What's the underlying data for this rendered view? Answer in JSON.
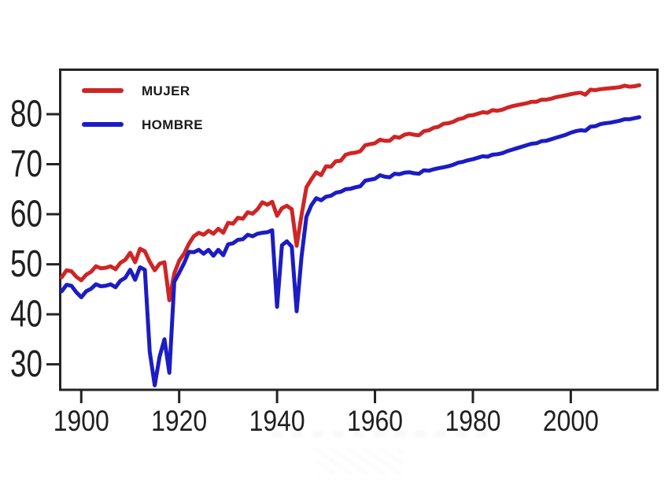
{
  "figure": {
    "background": "#ffffff",
    "axis_color": "#232323",
    "tick_label_color": "#1f1f1f"
  },
  "legend": {
    "items": [
      {
        "label": "MUJER",
        "color": "#cf2525"
      },
      {
        "label": "HOMBRE",
        "color": "#1c1cc4"
      }
    ]
  },
  "chart_data": {
    "type": "line",
    "title": "",
    "xlabel": "",
    "ylabel": "",
    "grid": false,
    "legend_position": "top-left",
    "x_range": [
      1895.7,
      2017.7
    ],
    "y_range": [
      24.9,
      88.9
    ],
    "x_ticks": [
      1900,
      1920,
      1940,
      1960,
      1980,
      2000
    ],
    "y_ticks": [
      30,
      40,
      50,
      60,
      70,
      80
    ],
    "x": [
      1896,
      1897,
      1898,
      1899,
      1900,
      1901,
      1902,
      1903,
      1904,
      1905,
      1906,
      1907,
      1908,
      1909,
      1910,
      1911,
      1912,
      1913,
      1914,
      1915,
      1916,
      1917,
      1918,
      1919,
      1920,
      1921,
      1922,
      1923,
      1924,
      1925,
      1926,
      1927,
      1928,
      1929,
      1930,
      1931,
      1932,
      1933,
      1934,
      1935,
      1936,
      1937,
      1938,
      1939,
      1940,
      1941,
      1942,
      1943,
      1944,
      1945,
      1946,
      1947,
      1948,
      1949,
      1950,
      1951,
      1952,
      1953,
      1954,
      1955,
      1956,
      1957,
      1958,
      1959,
      1960,
      1961,
      1962,
      1963,
      1964,
      1965,
      1966,
      1967,
      1968,
      1969,
      1970,
      1971,
      1972,
      1973,
      1974,
      1975,
      1976,
      1977,
      1978,
      1979,
      1980,
      1981,
      1982,
      1983,
      1984,
      1985,
      1986,
      1987,
      1988,
      1989,
      1990,
      1991,
      1992,
      1993,
      1994,
      1995,
      1996,
      1997,
      1998,
      1999,
      2000,
      2001,
      2002,
      2003,
      2004,
      2005,
      2006,
      2007,
      2008,
      2009,
      2010,
      2011,
      2012,
      2013,
      2014
    ],
    "series": [
      {
        "name": "MUJER",
        "color": "#cf2525",
        "values": [
          47.4,
          48.8,
          48.6,
          47.5,
          46.8,
          47.9,
          48.5,
          49.6,
          49.2,
          49.3,
          49.6,
          49.0,
          50.3,
          50.9,
          52.3,
          50.4,
          53.1,
          52.6,
          50.5,
          48.8,
          50.1,
          50.4,
          42.8,
          48.2,
          50.7,
          52.1,
          54.1,
          55.6,
          56.3,
          55.9,
          56.7,
          56.1,
          57.1,
          56.3,
          58.3,
          58.1,
          59.3,
          59.1,
          60.4,
          60.1,
          61.0,
          62.4,
          61.9,
          62.5,
          59.7,
          61.2,
          61.7,
          61.0,
          53.7,
          59.8,
          65.4,
          67.0,
          68.4,
          67.8,
          69.6,
          69.5,
          70.6,
          70.7,
          71.9,
          72.2,
          72.3,
          72.6,
          73.8,
          74.0,
          74.2,
          74.9,
          74.7,
          74.7,
          75.5,
          75.3,
          75.9,
          76.1,
          75.9,
          75.8,
          76.6,
          76.8,
          77.3,
          77.5,
          78.1,
          78.2,
          78.5,
          79.0,
          79.2,
          79.7,
          79.8,
          80.1,
          80.4,
          80.3,
          80.8,
          80.7,
          80.9,
          81.3,
          81.6,
          81.8,
          82.0,
          82.2,
          82.5,
          82.5,
          82.9,
          82.9,
          83.1,
          83.4,
          83.6,
          83.8,
          84.0,
          84.2,
          84.3,
          83.9,
          84.9,
          84.8,
          85.0,
          85.1,
          85.2,
          85.3,
          85.4,
          85.7,
          85.5,
          85.6,
          85.8
        ]
      },
      {
        "name": "HOMBRE",
        "color": "#1c1cc4",
        "values": [
          44.6,
          45.9,
          45.7,
          44.4,
          43.4,
          44.6,
          45.1,
          46.0,
          45.6,
          45.7,
          46.0,
          45.4,
          46.7,
          47.3,
          48.9,
          46.9,
          49.4,
          48.9,
          32.5,
          25.8,
          31.5,
          35.0,
          28.3,
          46.5,
          48.3,
          50.2,
          52.5,
          52.4,
          52.9,
          52.1,
          52.9,
          51.7,
          52.9,
          51.8,
          54.0,
          54.2,
          54.9,
          55.0,
          55.9,
          55.6,
          56.1,
          56.3,
          56.4,
          56.8,
          41.5,
          53.8,
          54.6,
          53.5,
          40.6,
          51.5,
          59.5,
          61.8,
          63.2,
          62.8,
          63.5,
          63.7,
          64.3,
          64.5,
          65.0,
          65.1,
          65.4,
          65.6,
          66.7,
          66.9,
          67.1,
          67.8,
          67.5,
          67.4,
          68.1,
          68.0,
          68.3,
          68.4,
          68.2,
          68.1,
          68.8,
          68.7,
          69.0,
          69.2,
          69.4,
          69.6,
          69.9,
          70.3,
          70.5,
          70.8,
          71.0,
          71.3,
          71.6,
          71.5,
          71.9,
          72.0,
          72.2,
          72.6,
          72.9,
          73.2,
          73.5,
          73.8,
          74.1,
          74.2,
          74.6,
          74.7,
          75.0,
          75.3,
          75.6,
          75.9,
          76.3,
          76.6,
          76.8,
          76.7,
          77.5,
          77.6,
          78.0,
          78.2,
          78.3,
          78.5,
          78.7,
          79.0,
          79.0,
          79.2,
          79.4
        ]
      }
    ]
  }
}
